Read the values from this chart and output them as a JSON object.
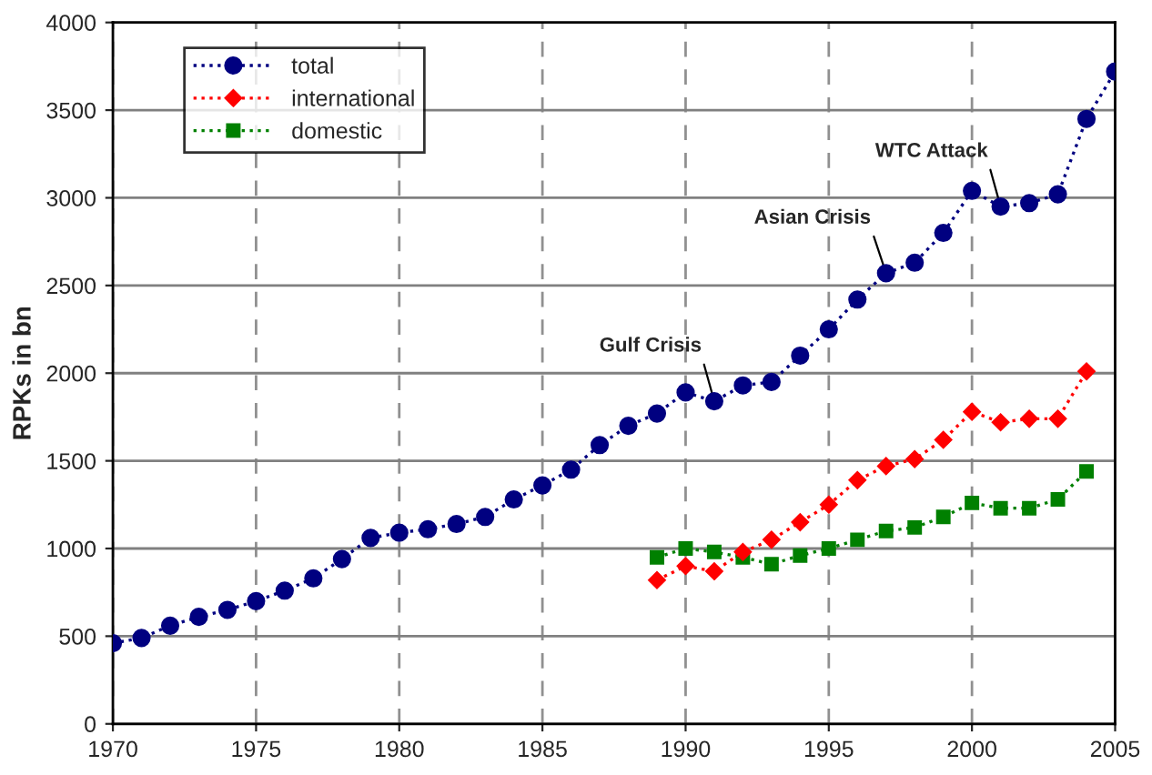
{
  "chart_data": {
    "type": "line",
    "ylabel": "RPKs in bn",
    "xlim": [
      1970,
      2005
    ],
    "xticks": [
      1970,
      1975,
      1980,
      1985,
      1990,
      1995,
      2000,
      2005
    ],
    "ylim": [
      0,
      4000
    ],
    "yticks": [
      0,
      500,
      1000,
      1500,
      2000,
      2500,
      3000,
      3500,
      4000
    ],
    "grid": true,
    "legend": "top left",
    "line_style": "dotted",
    "series": [
      {
        "name": "total",
        "color": "#000080",
        "marker": "circle",
        "x": [
          1970,
          1971,
          1972,
          1973,
          1974,
          1975,
          1976,
          1977,
          1978,
          1979,
          1980,
          1981,
          1982,
          1983,
          1984,
          1985,
          1986,
          1987,
          1988,
          1989,
          1990,
          1991,
          1992,
          1993,
          1994,
          1995,
          1996,
          1997,
          1998,
          1999,
          2000,
          2001,
          2002,
          2003,
          2004,
          2005
        ],
        "values": [
          460,
          490,
          560,
          610,
          650,
          700,
          760,
          830,
          940,
          1060,
          1090,
          1110,
          1140,
          1180,
          1280,
          1360,
          1450,
          1590,
          1700,
          1770,
          1890,
          1840,
          1930,
          1950,
          2100,
          2250,
          2420,
          2570,
          2630,
          2800,
          3040,
          2950,
          2970,
          3020,
          3450,
          3720
        ]
      },
      {
        "name": "international",
        "color": "#ff0000",
        "marker": "diamond",
        "x": [
          1989,
          1990,
          1991,
          1992,
          1993,
          1994,
          1995,
          1996,
          1997,
          1998,
          1999,
          2000,
          2001,
          2002,
          2003,
          2004
        ],
        "values": [
          820,
          900,
          870,
          980,
          1050,
          1150,
          1250,
          1390,
          1470,
          1510,
          1620,
          1780,
          1720,
          1740,
          1740,
          2010
        ]
      },
      {
        "name": "domestic",
        "color": "#008000",
        "marker": "square",
        "x": [
          1989,
          1990,
          1991,
          1992,
          1993,
          1994,
          1995,
          1996,
          1997,
          1998,
          1999,
          2000,
          2001,
          2002,
          2003,
          2004
        ],
        "values": [
          950,
          1000,
          980,
          950,
          910,
          960,
          1000,
          1050,
          1100,
          1120,
          1180,
          1260,
          1230,
          1230,
          1280,
          1440
        ]
      }
    ],
    "annotations": [
      {
        "text": "Gulf Crisis",
        "x": 1991,
        "y": 1840
      },
      {
        "text": "Asian Crisis",
        "x": 1997,
        "y": 2570
      },
      {
        "text": "WTC Attack",
        "x": 2001,
        "y": 2950
      }
    ]
  }
}
